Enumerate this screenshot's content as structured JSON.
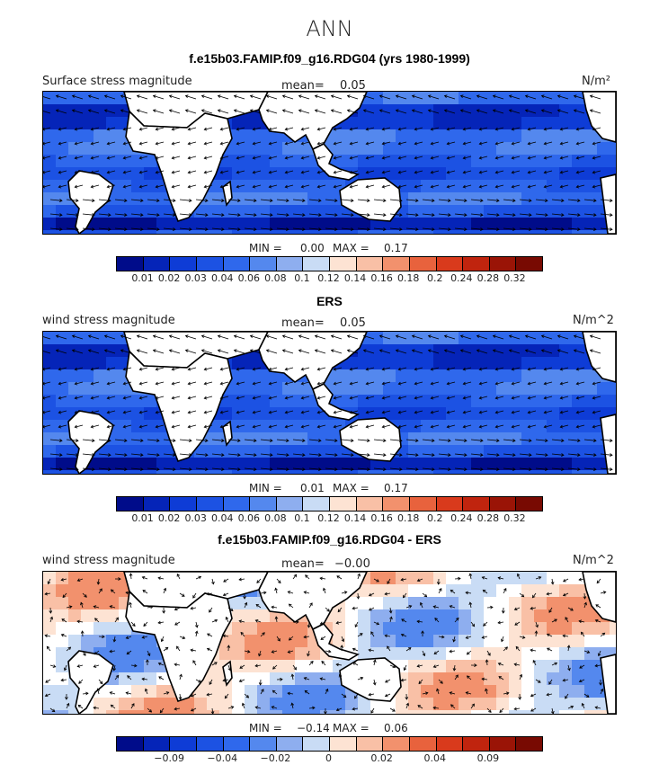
{
  "title": "ANN",
  "colors": {
    "abs_palette": [
      "#000c8a",
      "#0524b8",
      "#0e3cd6",
      "#1c52e3",
      "#2f68ec",
      "#5488ee",
      "#8eaeef",
      "#c9dcf5",
      "#fde3d3",
      "#f9c0a6",
      "#f2916d",
      "#e8623d",
      "#d93a1c",
      "#c0240e",
      "#9a1406",
      "#780a02"
    ],
    "diff_palette": [
      "#000c8a",
      "#0524b8",
      "#0e3cd6",
      "#1c52e3",
      "#2f68ec",
      "#5488ee",
      "#8eaeef",
      "#c9dcf5",
      "#fde3d3",
      "#f9c0a6",
      "#f2916d",
      "#e8623d",
      "#d93a1c",
      "#c0240e",
      "#9a1406",
      "#780a02"
    ]
  },
  "panels": [
    {
      "title": "f.e15b03.FAMIP.f09_g16.RDG04 (yrs 1980-1999)",
      "left_label": "Surface stress magnitude",
      "mean_label": "mean=",
      "mean_value": "0.05",
      "units": "N/m²",
      "min_label": "MIN =",
      "min_value": "0.00",
      "max_label": "MAX =",
      "max_value": "0.17",
      "colorbar_ticks": [
        "0.01",
        "0.02",
        "0.03",
        "0.04",
        "0.06",
        "0.08",
        "0.1",
        "0.12",
        "0.14",
        "0.16",
        "0.18",
        "0.2",
        "0.24",
        "0.28",
        "0.32"
      ]
    },
    {
      "title": "ERS",
      "left_label": "wind stress magnitude",
      "mean_label": "mean=",
      "mean_value": "0.05",
      "units": "N/m^2",
      "min_label": "MIN =",
      "min_value": "0.01",
      "max_label": "MAX =",
      "max_value": "0.17",
      "colorbar_ticks": [
        "0.01",
        "0.02",
        "0.03",
        "0.04",
        "0.06",
        "0.08",
        "0.1",
        "0.12",
        "0.14",
        "0.16",
        "0.18",
        "0.2",
        "0.24",
        "0.28",
        "0.32"
      ]
    },
    {
      "title": "f.e15b03.FAMIP.f09_g16.RDG04 - ERS",
      "left_label": "wind stress magnitude",
      "mean_label": "mean=",
      "mean_value": "−0.00",
      "units": "N/m^2",
      "min_label": "MIN =",
      "min_value": "−0.14",
      "max_label": "MAX =",
      "max_value": "0.06",
      "colorbar_ticks": [
        "",
        "−0.09",
        "",
        "−0.04",
        "",
        "−0.02",
        "",
        "0",
        "",
        "0.02",
        "",
        "0.04",
        "",
        "0.09",
        ""
      ]
    }
  ],
  "chart_data": [
    {
      "type": "heatmap",
      "title": "f.e15b03.FAMIP.f09_g16.RDG04 (yrs 1980-1999)",
      "variable": "Surface stress magnitude",
      "units": "N/m²",
      "mean": 0.05,
      "min": 0.0,
      "max": 0.17,
      "levels": [
        0.01,
        0.02,
        0.03,
        0.04,
        0.06,
        0.08,
        0.1,
        0.12,
        0.14,
        0.16,
        0.18,
        0.2,
        0.24,
        0.28,
        0.32
      ],
      "overlay": "wind stress vectors"
    },
    {
      "type": "heatmap",
      "title": "ERS",
      "variable": "wind stress magnitude",
      "units": "N/m^2",
      "mean": 0.05,
      "min": 0.01,
      "max": 0.17,
      "levels": [
        0.01,
        0.02,
        0.03,
        0.04,
        0.06,
        0.08,
        0.1,
        0.12,
        0.14,
        0.16,
        0.18,
        0.2,
        0.24,
        0.28,
        0.32
      ],
      "overlay": "wind stress vectors"
    },
    {
      "type": "heatmap",
      "title": "f.e15b03.FAMIP.f09_g16.RDG04 - ERS",
      "variable": "wind stress magnitude",
      "units": "N/m^2",
      "mean": -0.0,
      "min": -0.14,
      "max": 0.06,
      "labeled_levels": [
        -0.09,
        -0.04,
        -0.02,
        0,
        0.02,
        0.04,
        0.09
      ],
      "overlay": "wind stress difference vectors"
    }
  ]
}
